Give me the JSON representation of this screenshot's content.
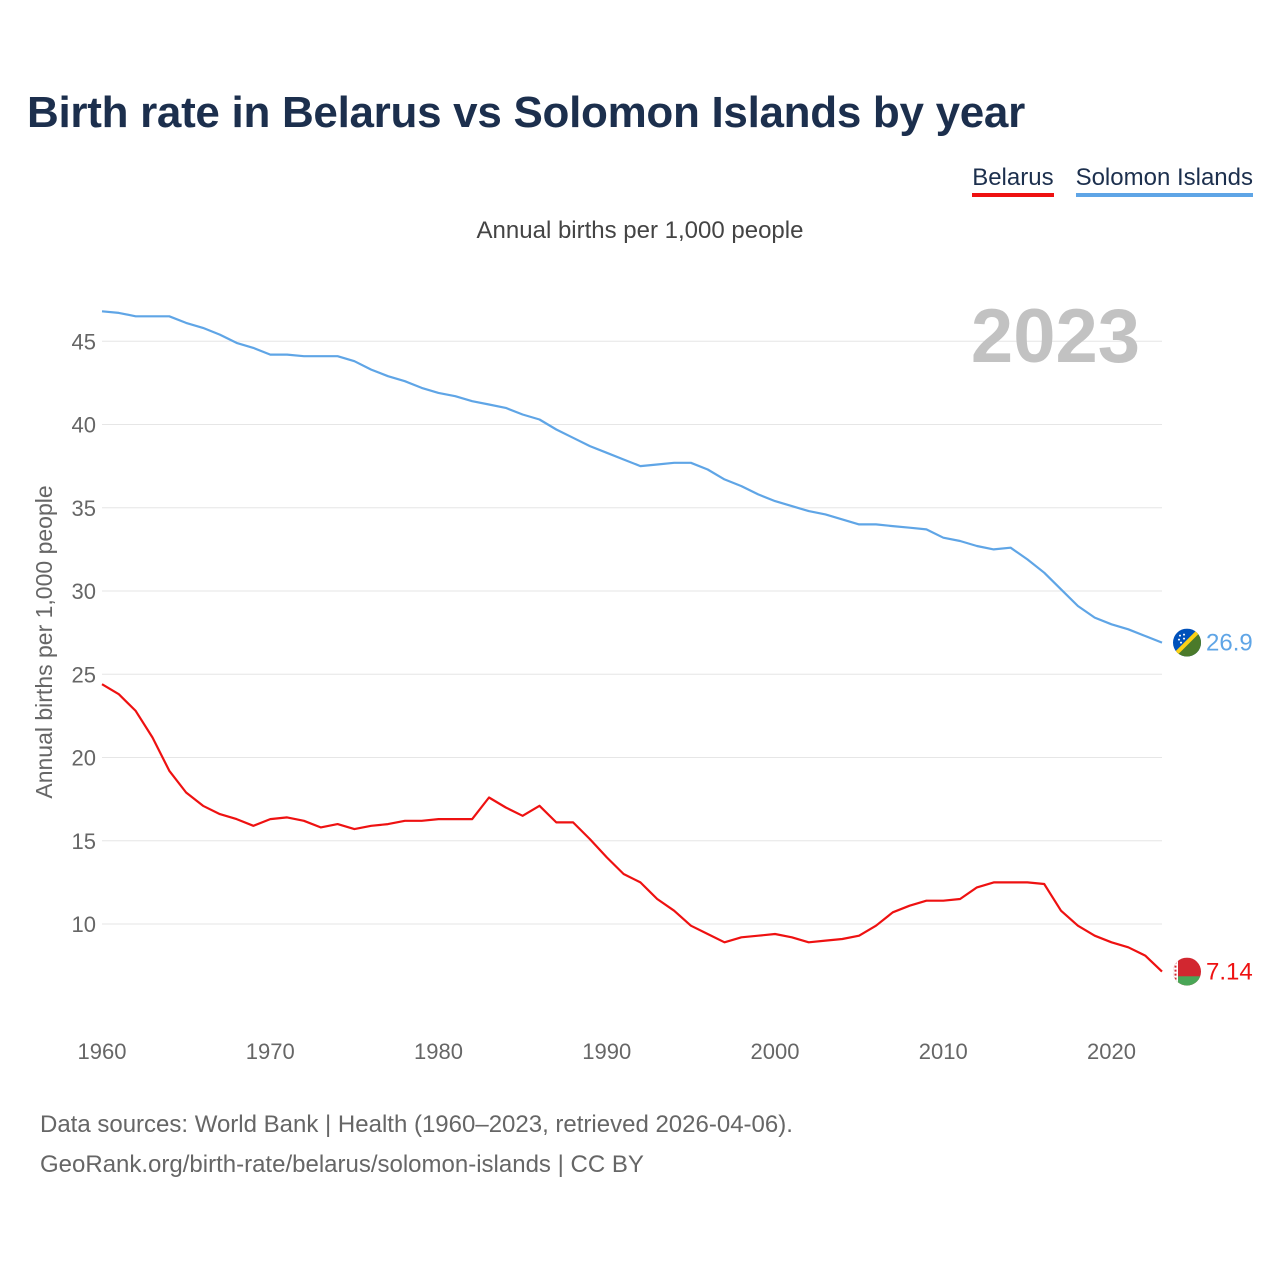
{
  "header": {
    "title": "Birth rate in Belarus vs Solomon Islands by year",
    "subtitle": "Annual births per 1,000 people"
  },
  "legend": {
    "items": [
      {
        "label": "Belarus",
        "color": "#ee1111"
      },
      {
        "label": "Solomon Islands",
        "color": "#5fa5e6"
      }
    ]
  },
  "year_label": "2023",
  "footer": {
    "line1": "Data sources: World Bank | Health (1960–2023, retrieved 2026-04-06).",
    "line2": "GeoRank.org/birth-rate/belarus/solomon-islands | CC BY"
  },
  "chart_data": {
    "type": "line",
    "title": "Birth rate in Belarus vs Solomon Islands by year",
    "subtitle": "Annual births per 1,000 people",
    "xlabel": "",
    "ylabel": "Annual births per 1,000 people",
    "xlim": [
      1960,
      2023
    ],
    "ylim": [
      5,
      48
    ],
    "xticks": [
      1960,
      1970,
      1980,
      1990,
      2000,
      2010,
      2020
    ],
    "yticks": [
      10,
      15,
      20,
      25,
      30,
      35,
      40,
      45
    ],
    "grid": true,
    "legend_position": "top-right",
    "x": [
      1960,
      1961,
      1962,
      1963,
      1964,
      1965,
      1966,
      1967,
      1968,
      1969,
      1970,
      1971,
      1972,
      1973,
      1974,
      1975,
      1976,
      1977,
      1978,
      1979,
      1980,
      1981,
      1982,
      1983,
      1984,
      1985,
      1986,
      1987,
      1988,
      1989,
      1990,
      1991,
      1992,
      1993,
      1994,
      1995,
      1996,
      1997,
      1998,
      1999,
      2000,
      2001,
      2002,
      2003,
      2004,
      2005,
      2006,
      2007,
      2008,
      2009,
      2010,
      2011,
      2012,
      2013,
      2014,
      2015,
      2016,
      2017,
      2018,
      2019,
      2020,
      2021,
      2022,
      2023
    ],
    "series": [
      {
        "name": "Belarus",
        "color": "#ee1111",
        "end_label": "7.14",
        "values": [
          24.4,
          23.8,
          22.8,
          21.2,
          19.2,
          17.9,
          17.1,
          16.6,
          16.3,
          15.9,
          16.3,
          16.4,
          16.2,
          15.8,
          16.0,
          15.7,
          15.9,
          16.0,
          16.2,
          16.2,
          16.3,
          16.3,
          16.3,
          17.6,
          17.0,
          16.5,
          17.1,
          16.1,
          16.1,
          15.1,
          14.0,
          13.0,
          12.5,
          11.5,
          10.8,
          9.9,
          9.4,
          8.9,
          9.2,
          9.3,
          9.4,
          9.2,
          8.9,
          9.0,
          9.1,
          9.3,
          9.9,
          10.7,
          11.1,
          11.4,
          11.4,
          11.5,
          12.2,
          12.5,
          12.5,
          12.5,
          12.4,
          10.8,
          9.9,
          9.3,
          8.9,
          8.6,
          8.1,
          7.14
        ]
      },
      {
        "name": "Solomon Islands",
        "color": "#5fa5e6",
        "end_label": "26.9",
        "values": [
          46.8,
          46.7,
          46.5,
          46.5,
          46.5,
          46.1,
          45.8,
          45.4,
          44.9,
          44.6,
          44.2,
          44.2,
          44.1,
          44.1,
          44.1,
          43.8,
          43.3,
          42.9,
          42.6,
          42.2,
          41.9,
          41.7,
          41.4,
          41.2,
          41.0,
          40.6,
          40.3,
          39.7,
          39.2,
          38.7,
          38.3,
          37.9,
          37.5,
          37.6,
          37.7,
          37.7,
          37.3,
          36.7,
          36.3,
          35.8,
          35.4,
          35.1,
          34.8,
          34.6,
          34.3,
          34.0,
          34.0,
          33.9,
          33.8,
          33.7,
          33.2,
          33.0,
          32.7,
          32.5,
          32.6,
          31.9,
          31.1,
          30.1,
          29.1,
          28.4,
          28.0,
          27.7,
          27.3,
          26.9
        ]
      }
    ]
  }
}
